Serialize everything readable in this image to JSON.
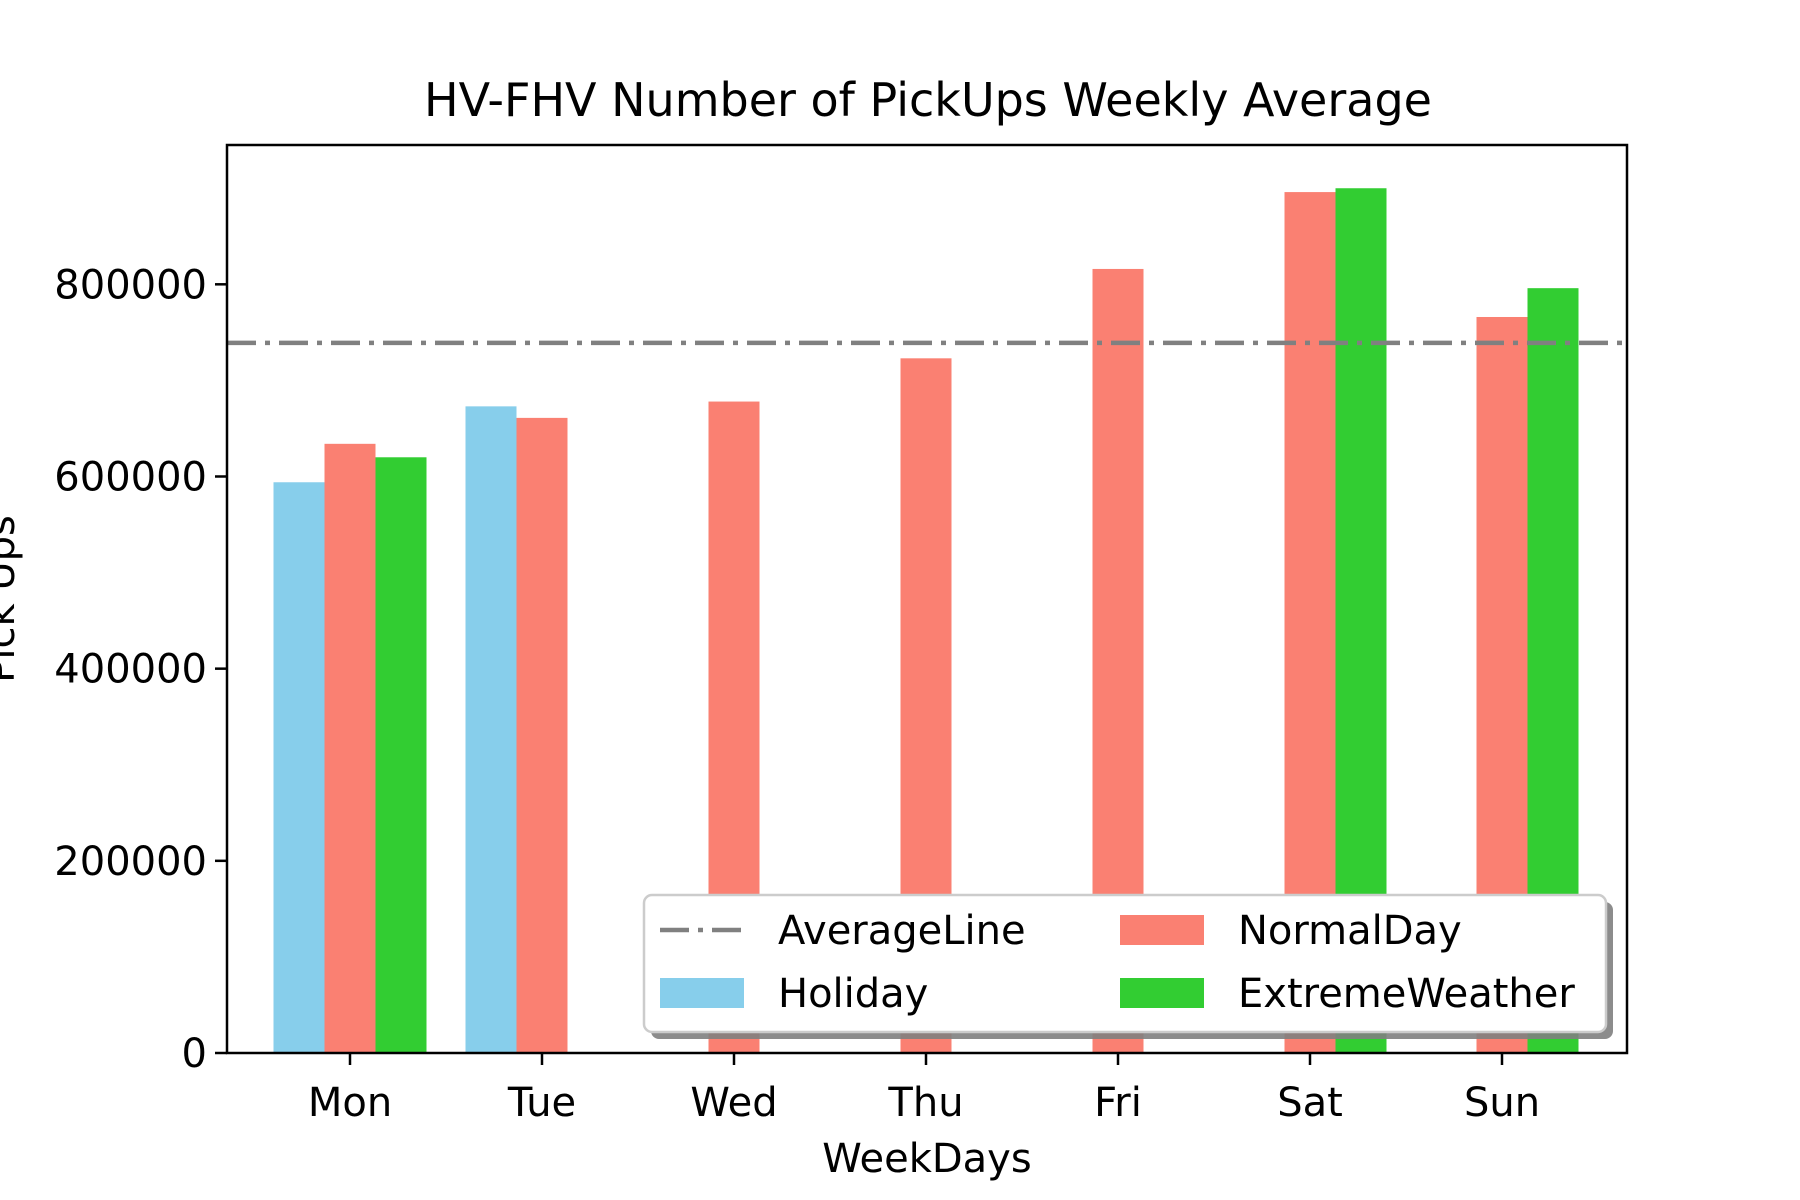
{
  "chart_data": {
    "type": "bar",
    "title": "HV-FHV Number of PickUps Weekly Average",
    "xlabel": "WeekDays",
    "ylabel": "Pick Ups",
    "categories": [
      "Mon",
      "Tue",
      "Wed",
      "Thu",
      "Fri",
      "Sat",
      "Sun"
    ],
    "series": [
      {
        "name": "Holiday",
        "color": "#87CEEB",
        "values": [
          594000,
          673000,
          null,
          null,
          null,
          null,
          null
        ]
      },
      {
        "name": "NormalDay",
        "color": "#FA8072",
        "values": [
          634000,
          661000,
          678000,
          723000,
          816000,
          896000,
          766000
        ]
      },
      {
        "name": "ExtremeWeather",
        "color": "#32CD32",
        "values": [
          620000,
          null,
          null,
          null,
          null,
          900000,
          796000
        ]
      }
    ],
    "average_line": {
      "name": "AverageLine",
      "value": 739000,
      "color": "#808080",
      "style": "dashdot"
    },
    "ylim": [
      0,
      945000
    ],
    "yticks": [
      {
        "value": 0,
        "label": "0"
      },
      {
        "value": 200000,
        "label": "200000"
      },
      {
        "value": 400000,
        "label": "400000"
      },
      {
        "value": 600000,
        "label": "600000"
      },
      {
        "value": 800000,
        "label": "800000"
      }
    ],
    "grid": false,
    "legend": {
      "placement": "lower-right",
      "columns": 2,
      "entries": [
        "AverageLine",
        "NormalDay",
        "Holiday",
        "ExtremeWeather"
      ]
    }
  }
}
